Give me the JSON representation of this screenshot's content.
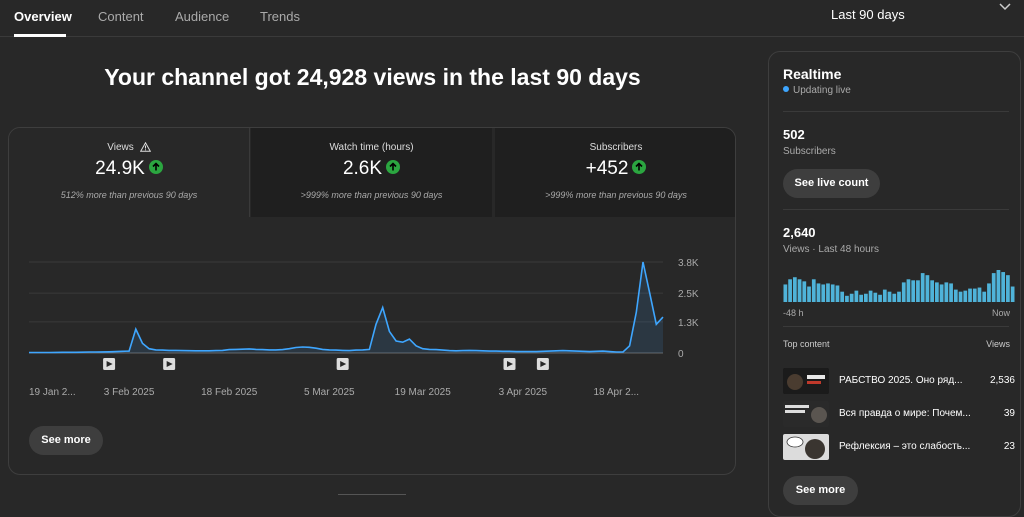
{
  "tabs": [
    {
      "label": "Overview",
      "active": true
    },
    {
      "label": "Content",
      "active": false
    },
    {
      "label": "Audience",
      "active": false
    },
    {
      "label": "Trends",
      "active": false
    }
  ],
  "period": {
    "label": "Last 90 days"
  },
  "headline": "Your channel got 24,928 views in the last 90 days",
  "metrics": [
    {
      "label": "Views",
      "value": "24.9K",
      "sub": "512% more than previous 90 days"
    },
    {
      "label": "Watch time (hours)",
      "value": "2.6K",
      "sub": ">999% more than previous 90 days"
    },
    {
      "label": "Subscribers",
      "value": "+452",
      "sub": ">999% more than previous 90 days"
    }
  ],
  "see_more": "See more",
  "colors": {
    "line": "#3ea6ff",
    "accent_green": "#2ba640",
    "live_dot": "#3ea6ff",
    "bars": "#4fb3d9"
  },
  "chart_data": {
    "type": "area",
    "title": "",
    "y_ticks": [
      "3.8K",
      "2.5K",
      "1.3K",
      "0"
    ],
    "ylim": [
      0,
      3800
    ],
    "x_ticks": [
      "19 Jan 2...",
      "3 Feb 2025",
      "18 Feb 2025",
      "5 Mar 2025",
      "19 Mar 2025",
      "3 Apr 2025",
      "18 Apr 2..."
    ],
    "x_tick_days": [
      0,
      15,
      30,
      45,
      59,
      74,
      88
    ],
    "grid": true,
    "x_start": "2025-01-19",
    "x_end": "2025-04-20",
    "values": [
      20,
      20,
      20,
      20,
      25,
      30,
      30,
      30,
      35,
      40,
      40,
      45,
      50,
      60,
      70,
      80,
      1000,
      400,
      180,
      130,
      120,
      110,
      110,
      100,
      95,
      90,
      90,
      90,
      100,
      110,
      140,
      150,
      160,
      170,
      150,
      140,
      130,
      130,
      140,
      180,
      230,
      250,
      240,
      200,
      150,
      130,
      120,
      110,
      100,
      120,
      130,
      150,
      1200,
      1900,
      900,
      500,
      450,
      580,
      300,
      180,
      150,
      140,
      120,
      100,
      90,
      100,
      110,
      100,
      90,
      80,
      80,
      70,
      70,
      60,
      60,
      60,
      60,
      70,
      80,
      90,
      100,
      90,
      80,
      70,
      60,
      70,
      80,
      60,
      40,
      40,
      300,
      1700,
      3800,
      2500,
      1200,
      1500
    ],
    "video_markers_day": [
      12,
      21,
      47,
      72,
      77
    ]
  },
  "realtime": {
    "title": "Realtime",
    "status": "Updating live",
    "subscribers_value": "502",
    "subscribers_label": "Subscribers",
    "live_count_button": "See live count",
    "views_value": "2,640",
    "views_label": "Views · Last 48 hours",
    "bars": [
      17,
      22,
      24,
      22,
      20,
      15,
      22,
      18,
      17,
      18,
      17,
      16,
      10,
      6,
      8,
      11,
      7,
      8,
      11,
      9,
      7,
      12,
      10,
      8,
      10,
      19,
      22,
      21,
      21,
      28,
      26,
      21,
      19,
      17,
      19,
      18,
      12,
      10,
      11,
      13,
      13,
      14,
      10,
      18,
      28,
      31,
      29,
      26,
      15
    ],
    "axis_left": "-48 h",
    "axis_right": "Now",
    "top_content_label": "Top content",
    "top_content_views_label": "Views",
    "top_content": [
      {
        "title": "РАБСТВО 2025. Оно ряд...",
        "views": "2,536"
      },
      {
        "title": "Вся правда о мире: Почем...",
        "views": "39"
      },
      {
        "title": "Рефлексия – это слабость...",
        "views": "23"
      }
    ],
    "see_more": "See more"
  }
}
